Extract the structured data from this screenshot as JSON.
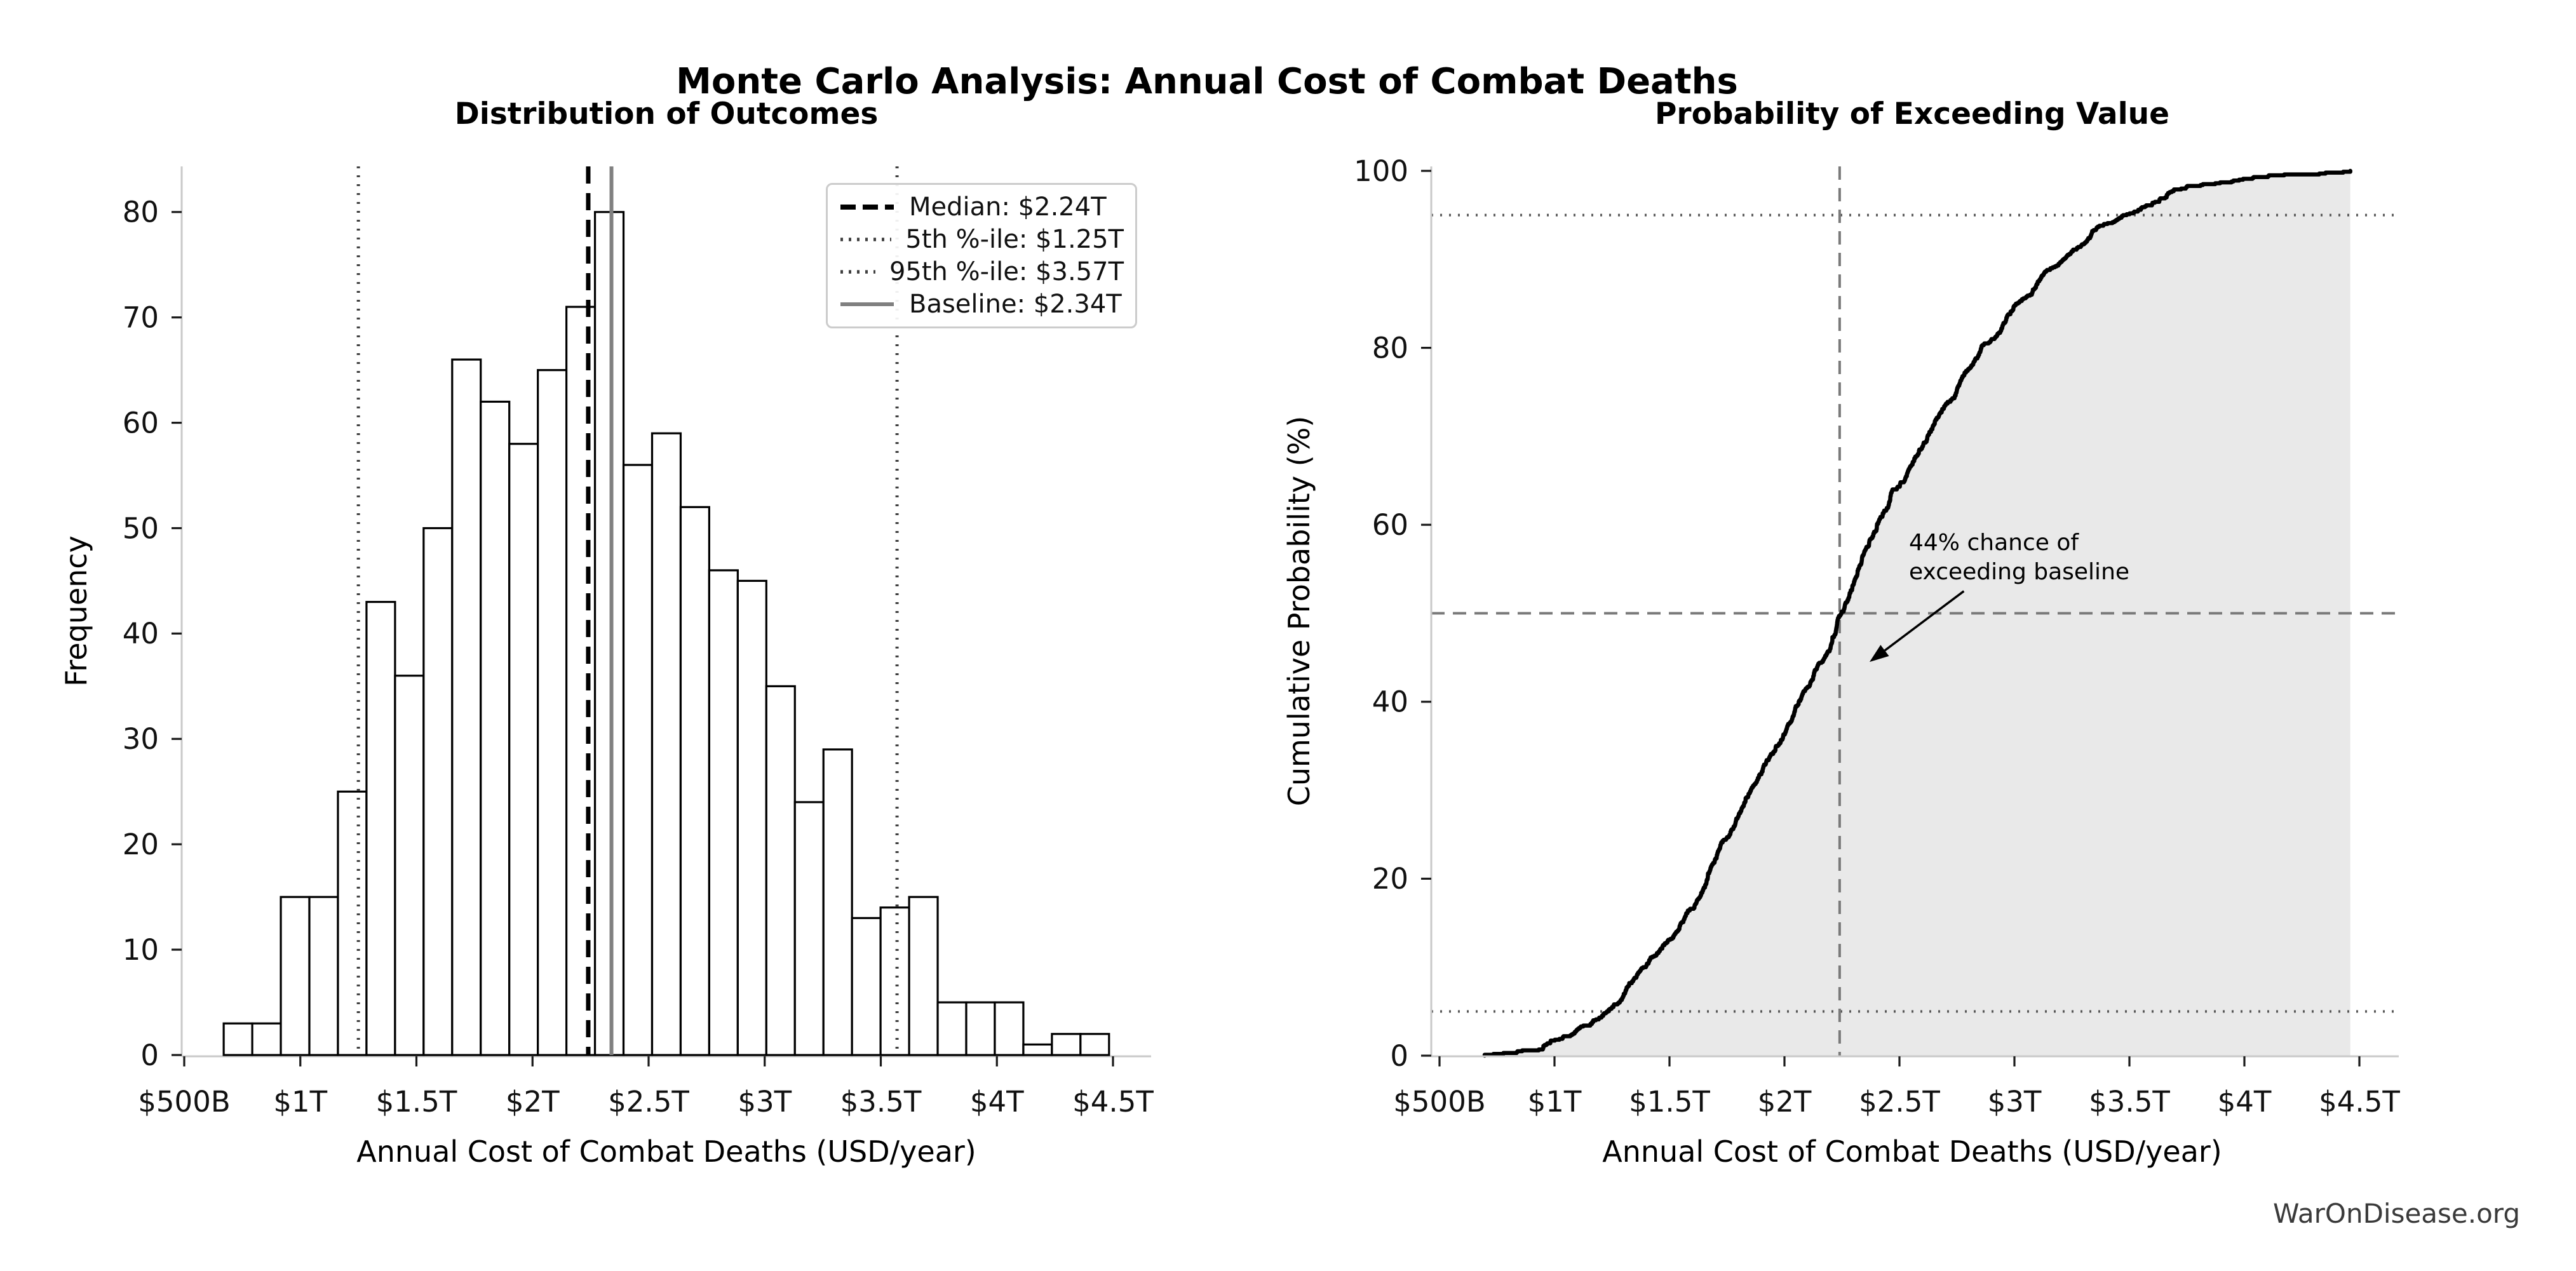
{
  "figure": {
    "title": "Monte Carlo Analysis: Annual Cost of Combat Deaths",
    "watermark": "WarOnDisease.org"
  },
  "chart_data": [
    {
      "type": "bar",
      "subtype": "histogram",
      "title": "Distribution of Outcomes",
      "xlabel": "Annual Cost of Combat Deaths (USD/year)",
      "ylabel": "Frequency",
      "x_unit": "USD trillions",
      "n_bins": 31,
      "bin_start": 0.67,
      "bin_width": 0.123,
      "values": [
        3,
        3,
        15,
        15,
        25,
        43,
        36,
        50,
        66,
        62,
        58,
        65,
        71,
        80,
        56,
        59,
        52,
        46,
        45,
        35,
        24,
        29,
        13,
        14,
        15,
        5,
        5,
        5,
        1,
        2,
        2
      ],
      "xticks": {
        "values": [
          0.5,
          1,
          1.5,
          2,
          2.5,
          3,
          3.5,
          4,
          4.5
        ],
        "labels": [
          "$500B",
          "$1T",
          "$1.5T",
          "$2T",
          "$2.5T",
          "$3T",
          "$3.5T",
          "$4T",
          "$4.5T"
        ]
      },
      "yticks": [
        0,
        10,
        20,
        30,
        40,
        50,
        60,
        70,
        80
      ],
      "xlim": [
        0.48,
        4.67
      ],
      "ylim": [
        0,
        84.5
      ],
      "grid": false,
      "bar_fill": "#ffffff",
      "bar_edge": "#000000",
      "reference_lines": [
        {
          "x": 2.24,
          "style": "dashed",
          "color": "#000000",
          "width": 7,
          "label": "Median: $2.24T"
        },
        {
          "x": 1.25,
          "style": "dotted",
          "color": "#3f3f3f",
          "width": 5,
          "label": "5th %-ile: $1.25T"
        },
        {
          "x": 3.57,
          "style": "dotted",
          "color": "#3f3f3f",
          "width": 5,
          "label": "95th %-ile: $3.57T"
        },
        {
          "x": 2.34,
          "style": "solid",
          "color": "#808080",
          "width": 6,
          "label": "Baseline: $2.34T"
        }
      ],
      "legend_position": "upper right"
    },
    {
      "type": "line",
      "subtype": "empirical-cdf",
      "title": "Probability of Exceeding Value",
      "xlabel": "Annual Cost of Combat Deaths (USD/year)",
      "ylabel": "Cumulative Probability (%)",
      "x_unit": "USD trillions",
      "x": [
        0.67,
        0.793,
        0.916,
        1.039,
        1.162,
        1.285,
        1.408,
        1.531,
        1.654,
        1.777,
        1.9,
        2.023,
        2.146,
        2.269,
        2.392,
        2.515,
        2.638,
        2.761,
        2.884,
        3.007,
        3.13,
        3.253,
        3.376,
        3.499,
        3.622,
        3.745,
        3.868,
        3.991,
        4.114,
        4.237,
        4.36,
        4.483
      ],
      "y": [
        0.0,
        0.3,
        0.6,
        2.1,
        3.6,
        6.1,
        10.4,
        14.0,
        19.0,
        25.6,
        31.8,
        37.6,
        44.1,
        51.2,
        59.2,
        64.8,
        70.7,
        75.9,
        80.5,
        85.0,
        88.5,
        90.9,
        93.8,
        95.1,
        96.5,
        98.0,
        98.5,
        99.0,
        99.5,
        99.6,
        99.8,
        100.0
      ],
      "xticks": {
        "values": [
          0.5,
          1,
          1.5,
          2,
          2.5,
          3,
          3.5,
          4,
          4.5
        ],
        "labels": [
          "$500B",
          "$1T",
          "$1.5T",
          "$2T",
          "$2.5T",
          "$3T",
          "$3.5T",
          "$4T",
          "$4.5T"
        ]
      },
      "yticks": [
        0,
        20,
        40,
        60,
        80,
        100
      ],
      "xlim": [
        0.48,
        4.67
      ],
      "ylim": [
        0,
        100
      ],
      "grid": false,
      "line_color": "#000000",
      "fill_color": "#e9e9e9",
      "hlines": [
        {
          "y": 5,
          "style": "dotted",
          "color": "#595959"
        },
        {
          "y": 95,
          "style": "dotted",
          "color": "#595959"
        },
        {
          "y": 50,
          "style": "dashed",
          "color": "#7a7a7a"
        }
      ],
      "vlines": [
        {
          "x": 2.24,
          "style": "dashed",
          "color": "#7a7a7a"
        }
      ],
      "annotation": {
        "text": "44% chance of\nexceeding baseline",
        "arrow_from": [
          2.78,
          52.5
        ],
        "arrow_to": [
          2.37,
          44.5
        ]
      }
    }
  ]
}
